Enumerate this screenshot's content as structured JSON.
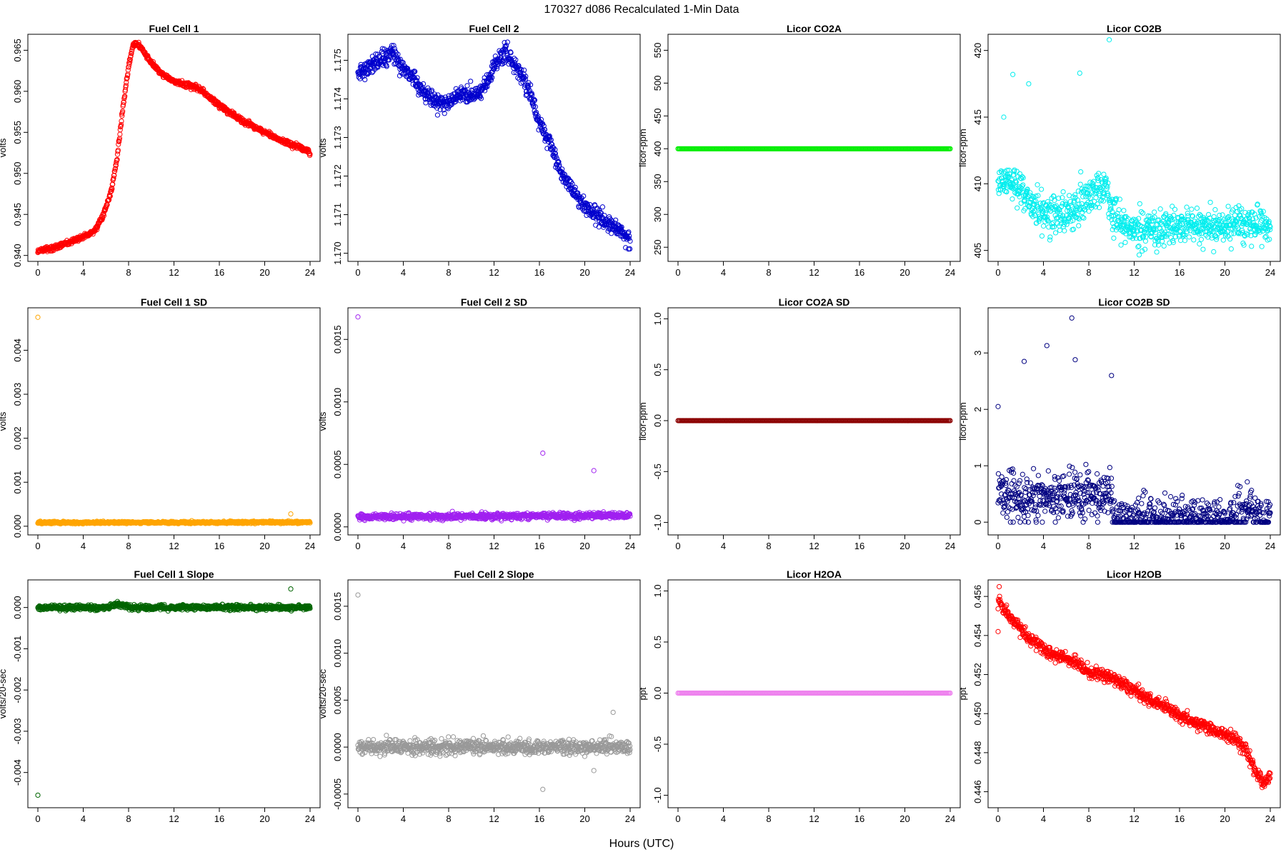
{
  "figure_title": "170327    d086    Recalculated 1-Min Data",
  "x_axis_label": "Hours (UTC)",
  "chart_data": [
    {
      "type": "scatter",
      "title": "Fuel Cell 1",
      "ylabel": "volts",
      "color": "#ff0000",
      "xlim": [
        0,
        24
      ],
      "ylim": [
        0.9398,
        0.9666
      ],
      "xticks": [
        "0",
        "4",
        "8",
        "12",
        "16",
        "20",
        "24"
      ],
      "yticks": [
        "0.940",
        "0.945",
        "0.950",
        "0.955",
        "0.960",
        "0.965"
      ],
      "anchors": [
        [
          0,
          0.9406
        ],
        [
          1,
          0.9408
        ],
        [
          2,
          0.9412
        ],
        [
          3,
          0.9417
        ],
        [
          4,
          0.9423
        ],
        [
          5,
          0.943
        ],
        [
          5.8,
          0.945
        ],
        [
          6.5,
          0.948
        ],
        [
          7,
          0.952
        ],
        [
          7.5,
          0.958
        ],
        [
          8,
          0.963
        ],
        [
          8.4,
          0.9658
        ],
        [
          9,
          0.9655
        ],
        [
          10,
          0.9635
        ],
        [
          11,
          0.962
        ],
        [
          12,
          0.9612
        ],
        [
          13,
          0.9608
        ],
        [
          14,
          0.9605
        ],
        [
          15,
          0.9595
        ],
        [
          16,
          0.9583
        ],
        [
          17,
          0.9573
        ],
        [
          18,
          0.9565
        ],
        [
          19,
          0.9557
        ],
        [
          20,
          0.955
        ],
        [
          21,
          0.9543
        ],
        [
          22,
          0.9537
        ],
        [
          23,
          0.9533
        ],
        [
          24,
          0.9525
        ]
      ],
      "noise": 0.00025,
      "outliers": []
    },
    {
      "type": "scatter",
      "title": "Fuel Cell 2",
      "ylabel": "volts",
      "color": "#0000cd",
      "xlim": [
        0,
        24
      ],
      "ylim": [
        1.1699,
        1.1756
      ],
      "xticks": [
        "0",
        "4",
        "8",
        "12",
        "16",
        "20",
        "24"
      ],
      "yticks": [
        "1.170",
        "1.171",
        "1.172",
        "1.173",
        "1.174",
        "1.175"
      ],
      "anchors": [
        [
          0,
          1.1747
        ],
        [
          2,
          1.175
        ],
        [
          3,
          1.1752
        ],
        [
          4,
          1.1748
        ],
        [
          5,
          1.1745
        ],
        [
          6,
          1.1741
        ],
        [
          7,
          1.1739
        ],
        [
          8,
          1.1739
        ],
        [
          9,
          1.1741
        ],
        [
          10,
          1.1741
        ],
        [
          11,
          1.1742
        ],
        [
          12,
          1.1749
        ],
        [
          13,
          1.1752
        ],
        [
          14,
          1.1748
        ],
        [
          15,
          1.1743
        ],
        [
          16,
          1.1734
        ],
        [
          17,
          1.1728
        ],
        [
          18,
          1.172
        ],
        [
          19,
          1.1716
        ],
        [
          20,
          1.1712
        ],
        [
          21,
          1.171
        ],
        [
          22,
          1.1708
        ],
        [
          23,
          1.1706
        ],
        [
          24,
          1.1703
        ]
      ],
      "noise": 0.00018,
      "outliers": []
    },
    {
      "type": "scatter",
      "title": "Licor CO2A",
      "ylabel": "licor-ppm",
      "color": "#00ee00",
      "xlim": [
        0,
        24
      ],
      "ylim": [
        235,
        570
      ],
      "xticks": [
        "0",
        "4",
        "8",
        "12",
        "16",
        "20",
        "24"
      ],
      "yticks": [
        "250",
        "300",
        "350",
        "400",
        "450",
        "500",
        "550"
      ],
      "anchors": [
        [
          0,
          400
        ],
        [
          24,
          400
        ]
      ],
      "noise": 0,
      "outliers": []
    },
    {
      "type": "scatter",
      "title": "Licor CO2B",
      "ylabel": "licor-ppm",
      "color": "#00eeee",
      "xlim": [
        0,
        24
      ],
      "ylim": [
        404.5,
        421
      ],
      "xticks": [
        "0",
        "4",
        "8",
        "12",
        "16",
        "20",
        "24"
      ],
      "yticks": [
        "405",
        "410",
        "415",
        "420"
      ],
      "anchors": [
        [
          0,
          410.5
        ],
        [
          2,
          409.5
        ],
        [
          4,
          407.5
        ],
        [
          6,
          407.8
        ],
        [
          8,
          409
        ],
        [
          9.5,
          410
        ],
        [
          10,
          407.8
        ],
        [
          11,
          406.8
        ],
        [
          12,
          406.5
        ],
        [
          14,
          406.6
        ],
        [
          16,
          406.9
        ],
        [
          17,
          407
        ],
        [
          18,
          406.7
        ],
        [
          20,
          406.9
        ],
        [
          21,
          407.1
        ],
        [
          22,
          406.9
        ],
        [
          24,
          406.7
        ]
      ],
      "noise": 1.1,
      "outliers": [
        [
          9.8,
          420.8
        ],
        [
          1.3,
          418.2
        ],
        [
          7.2,
          418.3
        ],
        [
          2.7,
          417.5
        ],
        [
          0.5,
          415
        ]
      ]
    },
    {
      "type": "scatter",
      "title": "Fuel Cell 1 SD",
      "ylabel": "volts",
      "color": "#ffa500",
      "xlim": [
        0,
        24
      ],
      "ylim": [
        -0.0001,
        0.0049
      ],
      "xticks": [
        "0",
        "4",
        "8",
        "12",
        "16",
        "20",
        "24"
      ],
      "yticks": [
        "0.000",
        "0.001",
        "0.002",
        "0.003",
        "0.004"
      ],
      "anchors": [
        [
          0,
          8e-05
        ],
        [
          24,
          9e-05
        ]
      ],
      "noise": 2e-05,
      "outliers": [
        [
          0,
          0.00475
        ],
        [
          22.3,
          0.00028
        ]
      ]
    },
    {
      "type": "scatter",
      "title": "Fuel Cell 2 SD",
      "ylabel": "volts",
      "color": "#a020f0",
      "xlim": [
        0,
        24
      ],
      "ylim": [
        -3e-05,
        0.00173
      ],
      "xticks": [
        "0",
        "4",
        "8",
        "12",
        "16",
        "20",
        "24"
      ],
      "yticks": [
        "0.0000",
        "0.0005",
        "0.0010",
        "0.0015"
      ],
      "anchors": [
        [
          0,
          8e-05
        ],
        [
          24,
          9e-05
        ]
      ],
      "noise": 2e-05,
      "outliers": [
        [
          0,
          0.00168
        ],
        [
          16.3,
          0.00059
        ],
        [
          20.8,
          0.00045
        ]
      ]
    },
    {
      "type": "scatter",
      "title": "Licor CO2A SD",
      "ylabel": "licor-ppm",
      "color": "#8b0000",
      "xlim": [
        0,
        24
      ],
      "ylim": [
        -1.08,
        1.08
      ],
      "xticks": [
        "0",
        "4",
        "8",
        "12",
        "16",
        "20",
        "24"
      ],
      "yticks": [
        "-1.0",
        "-0.5",
        "0.0",
        "0.5",
        "1.0"
      ],
      "anchors": [
        [
          0,
          0
        ],
        [
          24,
          0
        ]
      ],
      "noise": 0,
      "outliers": []
    },
    {
      "type": "scatter",
      "title": "Licor CO2B SD",
      "ylabel": "licor-ppm",
      "color": "#000080",
      "xlim": [
        0,
        24
      ],
      "ylim": [
        -0.15,
        3.75
      ],
      "xticks": [
        "0",
        "4",
        "8",
        "12",
        "16",
        "20",
        "24"
      ],
      "yticks": [
        "0",
        "1",
        "2",
        "3"
      ],
      "anchors": [
        [
          0,
          0.5
        ],
        [
          4,
          0.4
        ],
        [
          8,
          0.5
        ],
        [
          10,
          0.5
        ],
        [
          10.2,
          0.03
        ],
        [
          20,
          0.04
        ],
        [
          21,
          0.15
        ],
        [
          22,
          0.2
        ],
        [
          23,
          0.1
        ],
        [
          24,
          0.05
        ]
      ],
      "noise": 0.35,
      "outliers": [
        [
          6.5,
          3.62
        ],
        [
          4.3,
          3.13
        ],
        [
          2.3,
          2.85
        ],
        [
          6.8,
          2.88
        ],
        [
          10,
          2.6
        ],
        [
          0,
          2.05
        ]
      ]
    },
    {
      "type": "scatter",
      "title": "Fuel Cell 1 Slope",
      "ylabel": "volts/20-sec",
      "color": "#006400",
      "xlim": [
        0,
        24
      ],
      "ylim": [
        -0.00475,
        0.0006
      ],
      "xticks": [
        "0",
        "4",
        "8",
        "12",
        "16",
        "20",
        "24"
      ],
      "yticks": [
        "-0.004",
        "-0.003",
        "-0.002",
        "-0.001",
        "0.000"
      ],
      "anchors": [
        [
          0,
          0
        ],
        [
          6,
          0
        ],
        [
          7,
          8e-05
        ],
        [
          8,
          0
        ],
        [
          24,
          0
        ]
      ],
      "noise": 5e-05,
      "outliers": [
        [
          0,
          -0.00455
        ],
        [
          22.3,
          0.00045
        ]
      ]
    },
    {
      "type": "scatter",
      "title": "Fuel Cell 2 Slope",
      "ylabel": "volts/20-sec",
      "color": "#999999",
      "xlim": [
        0,
        24
      ],
      "ylim": [
        -0.0006,
        0.00175
      ],
      "xticks": [
        "0",
        "4",
        "8",
        "12",
        "16",
        "20",
        "24"
      ],
      "yticks": [
        "-0.0005",
        "0.0000",
        "0.0005",
        "0.0010",
        "0.0015"
      ],
      "anchors": [
        [
          0,
          0
        ],
        [
          24,
          0
        ]
      ],
      "noise": 6e-05,
      "outliers": [
        [
          0,
          0.00162
        ],
        [
          16.3,
          -0.00045
        ],
        [
          22.5,
          0.00037
        ],
        [
          20.8,
          -0.00025
        ]
      ]
    },
    {
      "type": "scatter",
      "title": "Licor H2OA",
      "ylabel": "ppt",
      "color": "#ee82ee",
      "xlim": [
        0,
        24
      ],
      "ylim": [
        -1.08,
        1.08
      ],
      "xticks": [
        "0",
        "4",
        "8",
        "12",
        "16",
        "20",
        "24"
      ],
      "yticks": [
        "-1.0",
        "-0.5",
        "0.0",
        "0.5",
        "1.0"
      ],
      "anchors": [
        [
          0,
          0
        ],
        [
          24,
          0
        ]
      ],
      "noise": 0,
      "outliers": []
    },
    {
      "type": "scatter",
      "title": "Licor H2OB",
      "ylabel": "ppt",
      "color": "#ff0000",
      "xlim": [
        0,
        24
      ],
      "ylim": [
        0.4454,
        0.4567
      ],
      "xticks": [
        "0",
        "4",
        "8",
        "12",
        "16",
        "20",
        "24"
      ],
      "yticks": [
        "0.446",
        "0.448",
        "0.450",
        "0.452",
        "0.454",
        "0.456"
      ],
      "anchors": [
        [
          0,
          0.4559
        ],
        [
          1,
          0.455
        ],
        [
          2,
          0.4543
        ],
        [
          3,
          0.4537
        ],
        [
          4,
          0.4533
        ],
        [
          5,
          0.453
        ],
        [
          6,
          0.4528
        ],
        [
          7,
          0.4525
        ],
        [
          8,
          0.4521
        ],
        [
          9,
          0.4521
        ],
        [
          10,
          0.4518
        ],
        [
          11,
          0.4515
        ],
        [
          12,
          0.4512
        ],
        [
          13,
          0.4508
        ],
        [
          14,
          0.4505
        ],
        [
          15,
          0.4503
        ],
        [
          16,
          0.4499
        ],
        [
          17,
          0.4496
        ],
        [
          18,
          0.4494
        ],
        [
          19,
          0.4491
        ],
        [
          20,
          0.4489
        ],
        [
          21,
          0.4487
        ],
        [
          22,
          0.448
        ],
        [
          22.8,
          0.4468
        ],
        [
          23.5,
          0.4465
        ],
        [
          24,
          0.4468
        ]
      ],
      "noise": 0.00025,
      "outliers": [
        [
          0.1,
          0.4565
        ],
        [
          0,
          0.4542
        ]
      ]
    }
  ]
}
